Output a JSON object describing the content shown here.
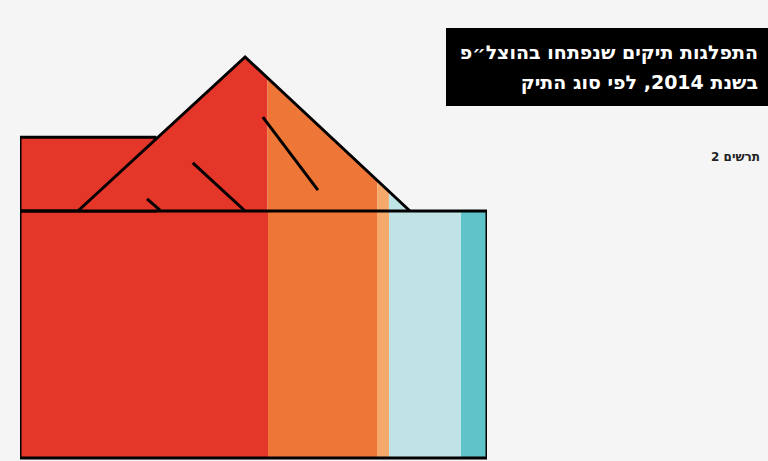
{
  "chart_data": {
    "type": "bar",
    "title": "התפלגות תיקים שנפתחו בהוצל״פ\nבשנת 2014, לפי סוג התיק",
    "subtitle": "תרשים 2",
    "orientation": "horizontal",
    "stacked": true,
    "values": [
      53,
      23.5,
      2.5,
      15.5,
      5.5
    ],
    "colors": [
      "#e5362a",
      "#ee7737",
      "#f5a96a",
      "#c0e3e6",
      "#5fc3c9"
    ],
    "xlim": [
      0,
      100
    ],
    "tick_labels": false,
    "grid": false
  }
}
